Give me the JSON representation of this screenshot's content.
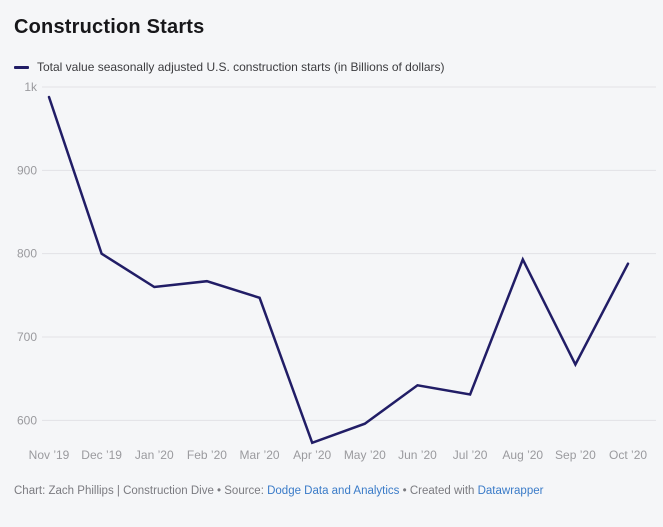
{
  "header": {
    "title": "Construction Starts"
  },
  "legend": {
    "label": "Total value seasonally adjusted U.S. construction starts (in Billions of dollars)"
  },
  "footer": {
    "byline": "Chart: Zach Phillips | Construction Dive • Source: ",
    "source_link": "Dodge Data and Analytics",
    "created_with": " • Created with ",
    "tool_link": "Datawrapper"
  },
  "colors": {
    "background": "#f5f6f8",
    "line": "#211d66",
    "gridline": "#e2e2e6",
    "tick_label": "#9a9a9e",
    "title": "#17171a",
    "footer_link": "#3a7bc8"
  },
  "chart_data": {
    "type": "line",
    "title": "Construction Starts",
    "subtitle": "Total value seasonally adjusted U.S. construction starts (in Billions of dollars)",
    "categories": [
      "Nov ’19",
      "Dec ’19",
      "Jan ’20",
      "Feb ’20",
      "Mar ’20",
      "Apr ’20",
      "May ’20",
      "Jun ’20",
      "Jul ’20",
      "Aug ’20",
      "Sep ’20",
      "Oct ’20"
    ],
    "series": [
      {
        "name": "Total value seasonally adjusted U.S. construction starts (in Billions of dollars)",
        "values": [
          988,
          800,
          760,
          767,
          747,
          573,
          596,
          642,
          631,
          793,
          667,
          788
        ]
      }
    ],
    "xlabel": "",
    "ylabel": "",
    "ylim": [
      555,
      1000
    ],
    "yticks": [
      {
        "value": 1000,
        "label": "1k"
      },
      {
        "value": 900,
        "label": "900"
      },
      {
        "value": 800,
        "label": "800"
      },
      {
        "value": 700,
        "label": "700"
      },
      {
        "value": 600,
        "label": "600"
      }
    ],
    "grid": "horizontal",
    "legend_position": "top-left"
  }
}
